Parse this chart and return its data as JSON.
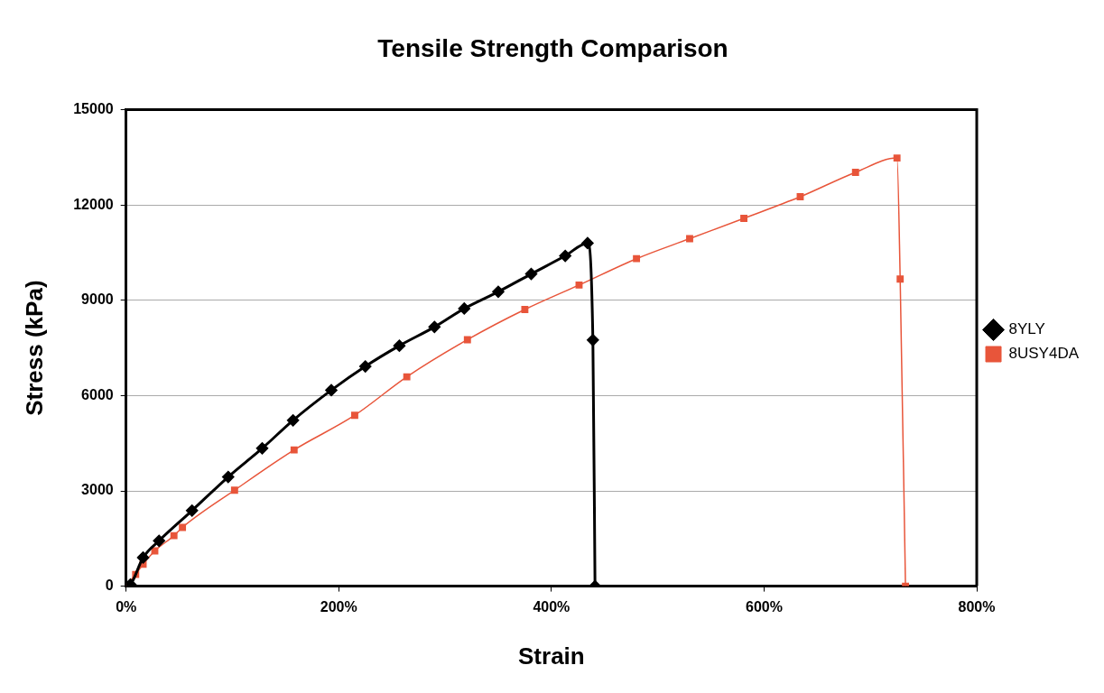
{
  "chart_data": {
    "type": "line",
    "title": "Tensile Strength Comparison",
    "xlabel": "Strain",
    "ylabel": "Stress (kPa)",
    "xlim": [
      0,
      800
    ],
    "xticks": [
      {
        "value": 0,
        "label": "0%"
      },
      {
        "value": 200,
        "label": "200%"
      },
      {
        "value": 400,
        "label": "400%"
      },
      {
        "value": 600,
        "label": "600%"
      },
      {
        "value": 800,
        "label": "800%"
      }
    ],
    "ylim": [
      0,
      15000
    ],
    "yticks": [
      0,
      3000,
      6000,
      9000,
      12000,
      15000
    ],
    "grid": "y",
    "legend": "right",
    "series": [
      {
        "name": "8YLY",
        "color": "#000000",
        "marker": "diamond",
        "x": [
          0,
          4,
          16,
          31,
          62,
          96,
          128,
          157,
          193,
          225,
          257,
          290,
          318,
          350,
          381,
          413,
          434,
          439,
          441
        ],
        "values": [
          0,
          50,
          900,
          1430,
          2380,
          3440,
          4340,
          5220,
          6170,
          6920,
          7570,
          8160,
          8740,
          9270,
          9830,
          10400,
          10800,
          7750,
          0
        ]
      },
      {
        "name": "8USY4DA",
        "color": "#e8553a",
        "marker": "square",
        "x": [
          0,
          2,
          9,
          16,
          27,
          45,
          53,
          102,
          158,
          215,
          264,
          321,
          375,
          426,
          480,
          530,
          581,
          634,
          686,
          725,
          728,
          733
        ],
        "values": [
          0,
          null,
          370,
          690,
          1110,
          1590,
          1850,
          3020,
          4290,
          5380,
          6590,
          7760,
          8710,
          9480,
          10310,
          10940,
          11580,
          12260,
          13030,
          13480,
          9670,
          0
        ]
      }
    ]
  }
}
